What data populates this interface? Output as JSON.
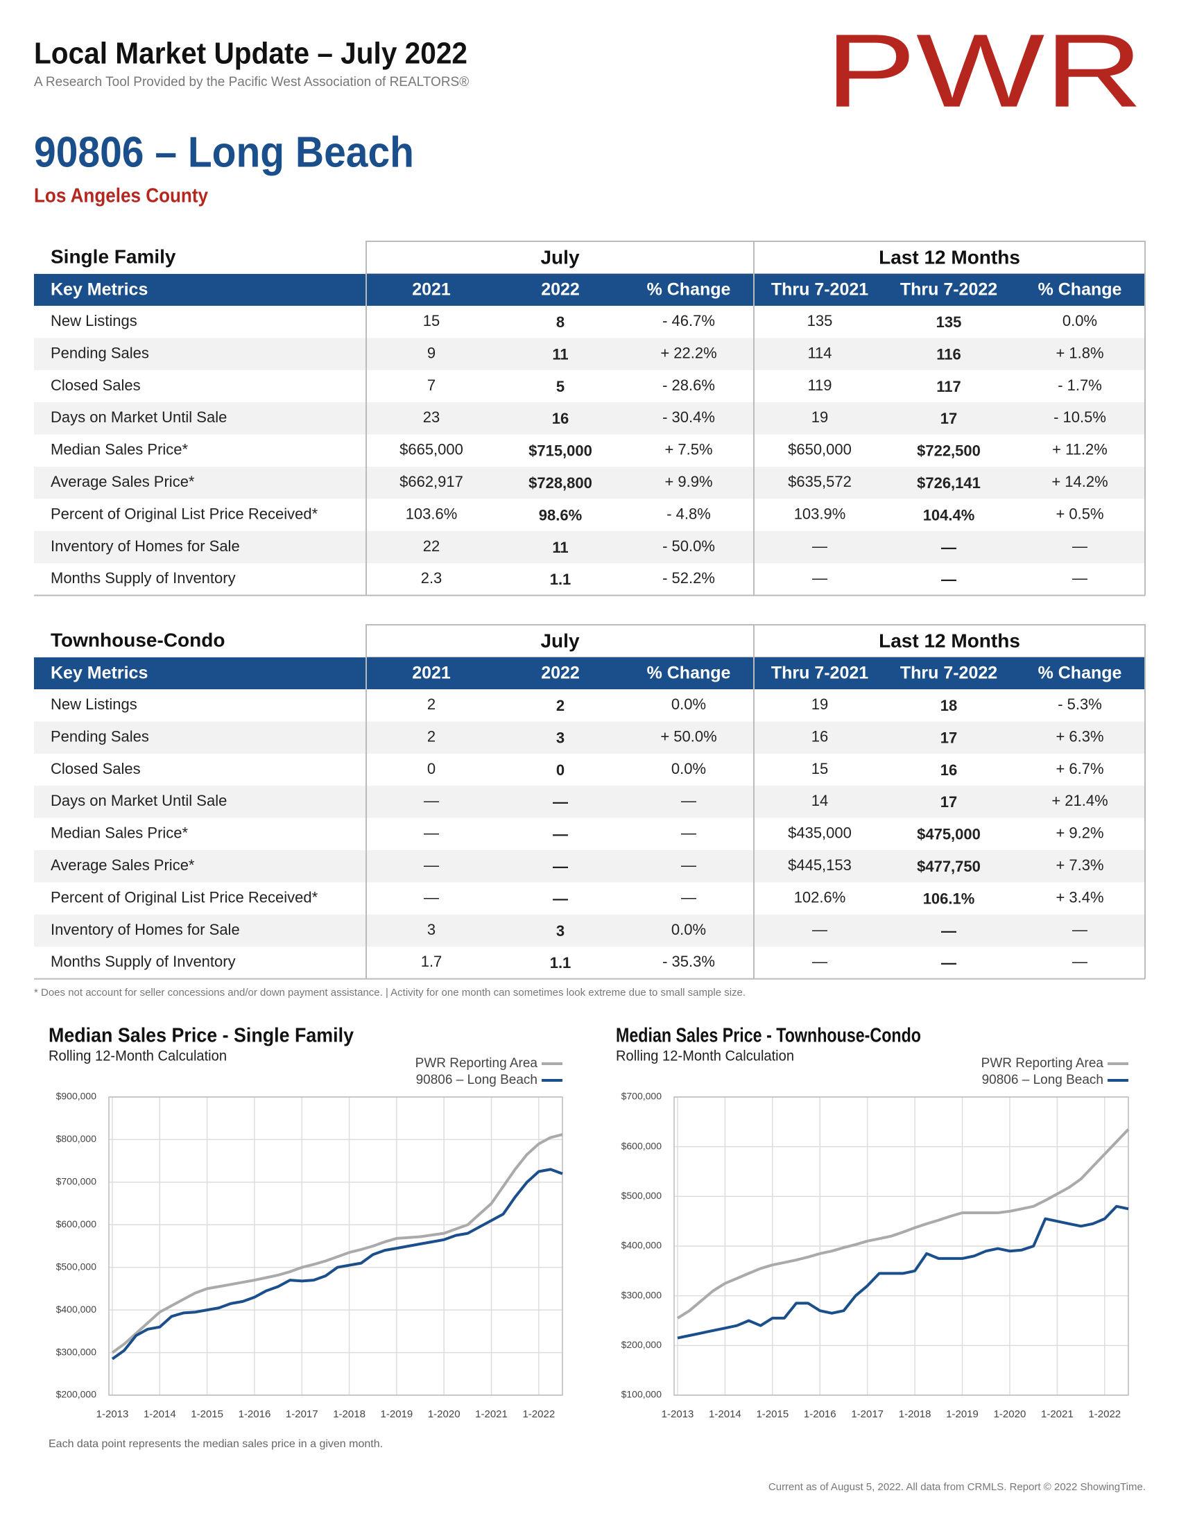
{
  "header": {
    "title": "Local Market Update – July 2022",
    "subtitle": "A Research Tool Provided by the Pacific West Association of REALTORS®",
    "logo": "PWR"
  },
  "area": {
    "title": "90806 – Long Beach",
    "county": "Los Angeles County"
  },
  "tables": [
    {
      "section": "Single Family",
      "groups": [
        "July",
        "Last 12 Months"
      ],
      "columns": [
        "Key Metrics",
        "2021",
        "2022",
        "% Change",
        "Thru 7-2021",
        "Thru 7-2022",
        "% Change"
      ],
      "rows": [
        [
          "New Listings",
          "15",
          "8",
          "- 46.7%",
          "135",
          "135",
          "0.0%"
        ],
        [
          "Pending Sales",
          "9",
          "11",
          "+ 22.2%",
          "114",
          "116",
          "+ 1.8%"
        ],
        [
          "Closed Sales",
          "7",
          "5",
          "- 28.6%",
          "119",
          "117",
          "- 1.7%"
        ],
        [
          "Days on Market Until Sale",
          "23",
          "16",
          "- 30.4%",
          "19",
          "17",
          "- 10.5%"
        ],
        [
          "Median Sales Price*",
          "$665,000",
          "$715,000",
          "+ 7.5%",
          "$650,000",
          "$722,500",
          "+ 11.2%"
        ],
        [
          "Average Sales Price*",
          "$662,917",
          "$728,800",
          "+ 9.9%",
          "$635,572",
          "$726,141",
          "+ 14.2%"
        ],
        [
          "Percent of Original List Price Received*",
          "103.6%",
          "98.6%",
          "- 4.8%",
          "103.9%",
          "104.4%",
          "+ 0.5%"
        ],
        [
          "Inventory of Homes for Sale",
          "22",
          "11",
          "- 50.0%",
          "—",
          "—",
          "—"
        ],
        [
          "Months Supply of Inventory",
          "2.3",
          "1.1",
          "- 52.2%",
          "—",
          "—",
          "—"
        ]
      ]
    },
    {
      "section": "Townhouse-Condo",
      "groups": [
        "July",
        "Last 12 Months"
      ],
      "columns": [
        "Key Metrics",
        "2021",
        "2022",
        "% Change",
        "Thru 7-2021",
        "Thru 7-2022",
        "% Change"
      ],
      "rows": [
        [
          "New Listings",
          "2",
          "2",
          "0.0%",
          "19",
          "18",
          "- 5.3%"
        ],
        [
          "Pending Sales",
          "2",
          "3",
          "+ 50.0%",
          "16",
          "17",
          "+ 6.3%"
        ],
        [
          "Closed Sales",
          "0",
          "0",
          "0.0%",
          "15",
          "16",
          "+ 6.7%"
        ],
        [
          "Days on Market Until Sale",
          "—",
          "—",
          "—",
          "14",
          "17",
          "+ 21.4%"
        ],
        [
          "Median Sales Price*",
          "—",
          "—",
          "—",
          "$435,000",
          "$475,000",
          "+ 9.2%"
        ],
        [
          "Average Sales Price*",
          "—",
          "—",
          "—",
          "$445,153",
          "$477,750",
          "+ 7.3%"
        ],
        [
          "Percent of Original List Price Received*",
          "—",
          "—",
          "—",
          "102.6%",
          "106.1%",
          "+ 3.4%"
        ],
        [
          "Inventory of Homes for Sale",
          "3",
          "3",
          "0.0%",
          "—",
          "—",
          "—"
        ],
        [
          "Months Supply of Inventory",
          "1.7",
          "1.1",
          "- 35.3%",
          "—",
          "—",
          "—"
        ]
      ]
    }
  ],
  "footnote": "* Does not account for seller concessions and/or down payment assistance. | Activity for one month can sometimes look extreme due to small sample size.",
  "chart_data": [
    {
      "type": "line",
      "title": "Median Sales Price - Single Family",
      "subtitle": "Rolling 12-Month Calculation",
      "categories": [
        "1-2013",
        null,
        null,
        null,
        "1-2014",
        null,
        null,
        null,
        "1-2015",
        null,
        null,
        null,
        "1-2016",
        null,
        null,
        null,
        "1-2017",
        null,
        null,
        null,
        "1-2018",
        null,
        null,
        null,
        "1-2019",
        null,
        null,
        null,
        "1-2020",
        null,
        null,
        null,
        "1-2021",
        null,
        null,
        null,
        "1-2022",
        null,
        null
      ],
      "series": [
        {
          "name": "PWR Reporting Area",
          "color": "#aaaaaa",
          "values": [
            300000,
            320000,
            345000,
            370000,
            395000,
            410000,
            425000,
            440000,
            450000,
            455000,
            460000,
            465000,
            470000,
            476000,
            482000,
            490000,
            500000,
            507000,
            515000,
            525000,
            535000,
            542000,
            550000,
            560000,
            568000,
            570000,
            572000,
            576000,
            580000,
            590000,
            600000,
            625000,
            650000,
            690000,
            730000,
            765000,
            790000,
            805000,
            812000
          ]
        },
        {
          "name": "90806 – Long Beach",
          "color": "#1a4f8b",
          "values": [
            285000,
            305000,
            340000,
            355000,
            360000,
            385000,
            393000,
            395000,
            400000,
            405000,
            415000,
            420000,
            430000,
            445000,
            455000,
            470000,
            468000,
            470000,
            480000,
            500000,
            505000,
            510000,
            530000,
            540000,
            545000,
            550000,
            555000,
            560000,
            565000,
            575000,
            580000,
            595000,
            610000,
            625000,
            665000,
            700000,
            725000,
            730000,
            720000
          ]
        }
      ],
      "ylim": [
        200000,
        900000
      ],
      "yticks": [
        {
          "value": 200000,
          "label": "$200,000"
        },
        {
          "value": 300000,
          "label": "$300,000"
        },
        {
          "value": 400000,
          "label": "$400,000"
        },
        {
          "value": 500000,
          "label": "$500,000"
        },
        {
          "value": 600000,
          "label": "$600,000"
        },
        {
          "value": 700000,
          "label": "$700,000"
        },
        {
          "value": 800000,
          "label": "$800,000"
        },
        {
          "value": 900000,
          "label": "$900,000"
        }
      ],
      "grid": true,
      "legend": "top-right",
      "note": "Each data point represents the median sales price in a given month."
    },
    {
      "type": "line",
      "title": "Median Sales Price - Townhouse-Condo",
      "subtitle": "Rolling 12-Month Calculation",
      "categories": [
        "1-2013",
        null,
        null,
        null,
        "1-2014",
        null,
        null,
        null,
        "1-2015",
        null,
        null,
        null,
        "1-2016",
        null,
        null,
        null,
        "1-2017",
        null,
        null,
        null,
        "1-2018",
        null,
        null,
        null,
        "1-2019",
        null,
        null,
        null,
        "1-2020",
        null,
        null,
        null,
        "1-2021",
        null,
        null,
        null,
        "1-2022",
        null,
        null
      ],
      "series": [
        {
          "name": "PWR Reporting Area",
          "color": "#aaaaaa",
          "values": [
            255000,
            270000,
            290000,
            310000,
            325000,
            335000,
            345000,
            355000,
            362000,
            367000,
            372000,
            378000,
            385000,
            390000,
            397000,
            403000,
            410000,
            415000,
            420000,
            428000,
            437000,
            445000,
            452000,
            460000,
            467000,
            467000,
            467000,
            467000,
            470000,
            475000,
            480000,
            492000,
            505000,
            518000,
            535000,
            560000,
            585000,
            610000,
            635000
          ]
        },
        {
          "name": "90806 – Long Beach",
          "color": "#1a4f8b",
          "values": [
            215000,
            220000,
            225000,
            230000,
            235000,
            240000,
            250000,
            240000,
            255000,
            255000,
            285000,
            285000,
            270000,
            265000,
            270000,
            300000,
            320000,
            345000,
            345000,
            345000,
            350000,
            385000,
            375000,
            375000,
            375000,
            380000,
            390000,
            395000,
            390000,
            392000,
            400000,
            455000,
            450000,
            445000,
            440000,
            445000,
            455000,
            480000,
            475000
          ]
        }
      ],
      "ylim": [
        100000,
        700000
      ],
      "yticks": [
        {
          "value": 100000,
          "label": "$100,000"
        },
        {
          "value": 200000,
          "label": "$200,000"
        },
        {
          "value": 300000,
          "label": "$300,000"
        },
        {
          "value": 400000,
          "label": "$400,000"
        },
        {
          "value": 500000,
          "label": "$500,000"
        },
        {
          "value": 600000,
          "label": "$600,000"
        },
        {
          "value": 700000,
          "label": "$700,000"
        }
      ],
      "grid": true,
      "legend": "top-right"
    }
  ],
  "footer": "Current as of August 5, 2022. All data from CRMLS. Report © 2022 ShowingTime."
}
